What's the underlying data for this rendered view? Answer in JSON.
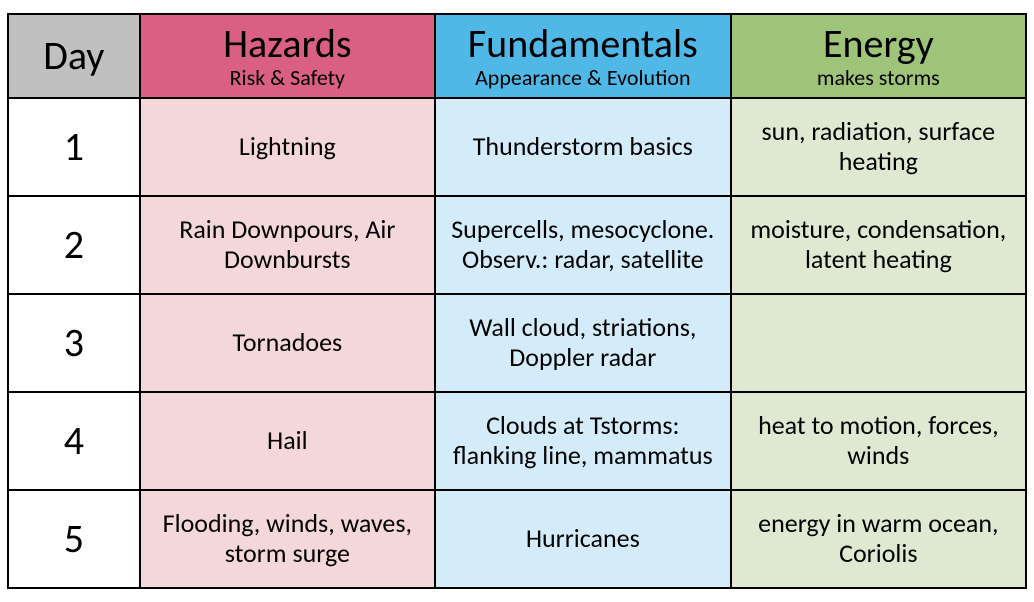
{
  "colors": {
    "day_header_bg": "#c0c0c0",
    "hazards_header_bg": "#d96083",
    "fundamentals_header_bg": "#4fb8e6",
    "energy_header_bg": "#9ec47a",
    "hazards_body_bg": "#f4d7d9",
    "fundamentals_body_bg": "#d4ecfa",
    "energy_body_bg": "#dfe9d1",
    "border": "#000000",
    "text": "#000000"
  },
  "headers": {
    "day": "Day",
    "hazards": {
      "title": "Hazards",
      "subtitle": "Risk & Safety"
    },
    "fundamentals": {
      "title": "Fundamentals",
      "subtitle": "Appearance & Evolution"
    },
    "energy": {
      "title": "Energy",
      "subtitle": "makes storms"
    }
  },
  "rows": [
    {
      "day": "1",
      "hazards": "Lightning",
      "fundamentals": "Thunderstorm basics",
      "energy": "sun, radiation, surface heating"
    },
    {
      "day": "2",
      "hazards": "Rain Downpours, Air Downbursts",
      "fundamentals": "Supercells, mesocyclone. Observ.: radar, satellite",
      "energy": "moisture, condensation, latent heating"
    },
    {
      "day": "3",
      "hazards": "Tornadoes",
      "fundamentals": "Wall cloud, striations, Doppler radar",
      "energy": ""
    },
    {
      "day": "4",
      "hazards": "Hail",
      "fundamentals": "Clouds at Tstorms: flanking line, mammatus",
      "energy": "heat to motion, forces, winds"
    },
    {
      "day": "5",
      "hazards": "Flooding, winds, waves, storm surge",
      "fundamentals": "Hurricanes",
      "energy": "energy in warm ocean, Coriolis"
    }
  ]
}
